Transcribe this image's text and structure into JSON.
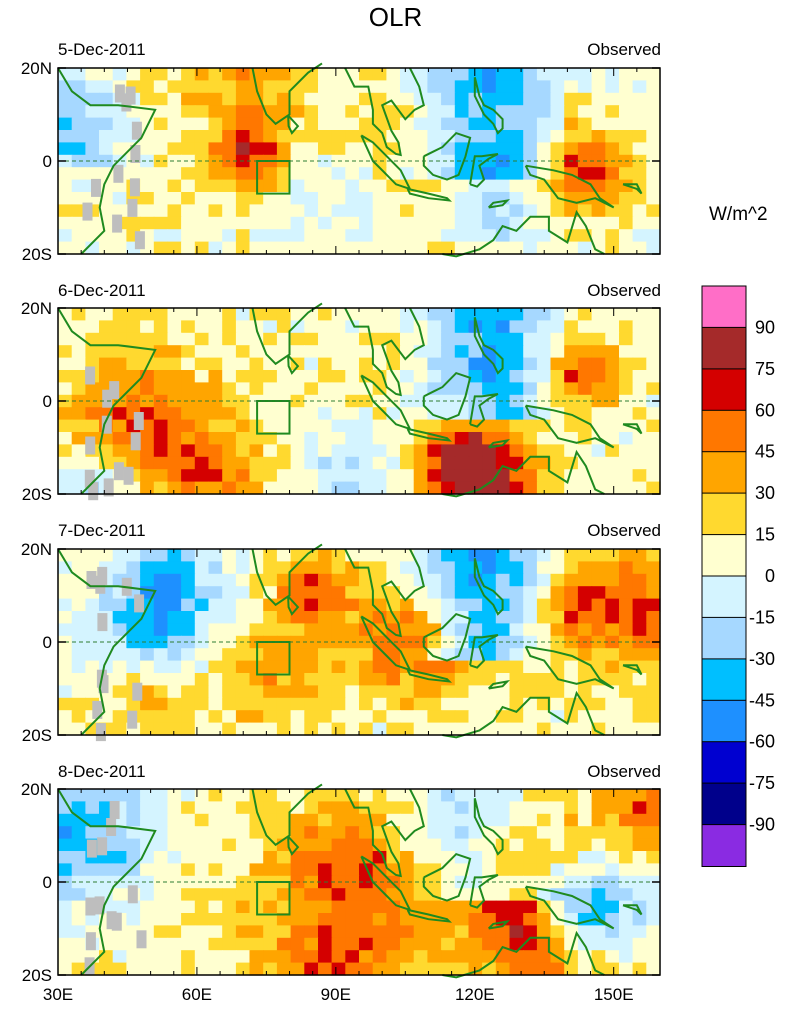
{
  "title": "OLR",
  "units": "W/m^2",
  "chart_data": {
    "type": "heatmap",
    "title": "OLR",
    "colorbar": {
      "units": "W/m^2",
      "levels": [
        "90",
        "75",
        "60",
        "45",
        "30",
        "15",
        "0",
        "-15",
        "-30",
        "-45",
        "-60",
        "-75",
        "-90"
      ],
      "colors": [
        "#ff6ec7",
        "#a52a2a",
        "#d40000",
        "#ff7700",
        "#ffa500",
        "#ffd92f",
        "#ffffd0",
        "#d4f4ff",
        "#a6d8ff",
        "#00bfff",
        "#1e90ff",
        "#0000d0",
        "#00008b",
        "#8a2be2"
      ]
    },
    "x_ticks": [
      "30E",
      "60E",
      "90E",
      "120E",
      "150E"
    ],
    "x_range": [
      30,
      160
    ],
    "y_ticks": [
      "20N",
      "0",
      "20S"
    ],
    "y_range": [
      -20,
      20
    ],
    "box_region": {
      "lon": [
        73,
        80
      ],
      "lat": [
        -7,
        0
      ]
    },
    "panels": [
      {
        "date": "5-Dec-2011",
        "label": "Observed"
      },
      {
        "date": "6-Dec-2011",
        "label": "Observed"
      },
      {
        "date": "7-Dec-2011",
        "label": "Observed"
      },
      {
        "date": "8-Dec-2011",
        "label": "Observed"
      }
    ]
  }
}
